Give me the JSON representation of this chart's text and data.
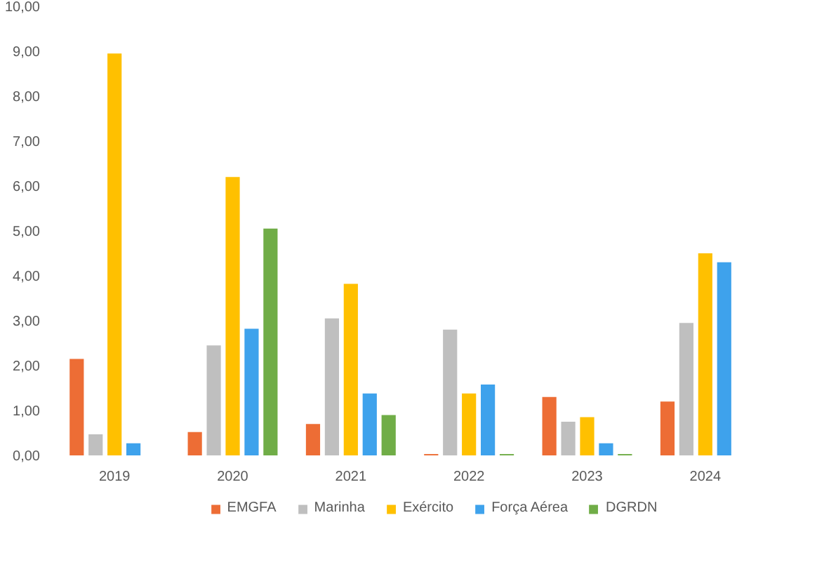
{
  "chart_data": {
    "type": "bar",
    "categories": [
      "2019",
      "2020",
      "2021",
      "2022",
      "2023",
      "2024"
    ],
    "series": [
      {
        "name": "EMGFA",
        "color": "#ed6d35",
        "values": [
          2.15,
          0.52,
          0.7,
          0.03,
          1.3,
          1.2
        ]
      },
      {
        "name": "Marinha",
        "color": "#bfbfbf",
        "values": [
          0.47,
          2.45,
          3.05,
          2.8,
          0.75,
          2.95
        ]
      },
      {
        "name": "Exército",
        "color": "#ffc000",
        "values": [
          8.95,
          6.2,
          3.82,
          1.38,
          0.85,
          4.5
        ]
      },
      {
        "name": "Força Aérea",
        "color": "#3ea2ec",
        "values": [
          0.27,
          2.82,
          1.38,
          1.58,
          0.27,
          4.3
        ]
      },
      {
        "name": "DGRDN",
        "color": "#70ad47",
        "values": [
          null,
          5.05,
          0.9,
          0.03,
          0.03,
          null
        ]
      }
    ],
    "ylim": [
      0,
      10
    ],
    "yticks": [
      {
        "value": 0,
        "label": "0,00"
      },
      {
        "value": 1,
        "label": "1,00"
      },
      {
        "value": 2,
        "label": "2,00"
      },
      {
        "value": 3,
        "label": "3,00"
      },
      {
        "value": 4,
        "label": "4,00"
      },
      {
        "value": 5,
        "label": "5,00"
      },
      {
        "value": 6,
        "label": "6,00"
      },
      {
        "value": 7,
        "label": "7,00"
      },
      {
        "value": 8,
        "label": "8,00"
      },
      {
        "value": 9,
        "label": "9,00"
      },
      {
        "value": 10,
        "label": "10,00"
      }
    ],
    "grid": false,
    "legend": "bottom"
  }
}
